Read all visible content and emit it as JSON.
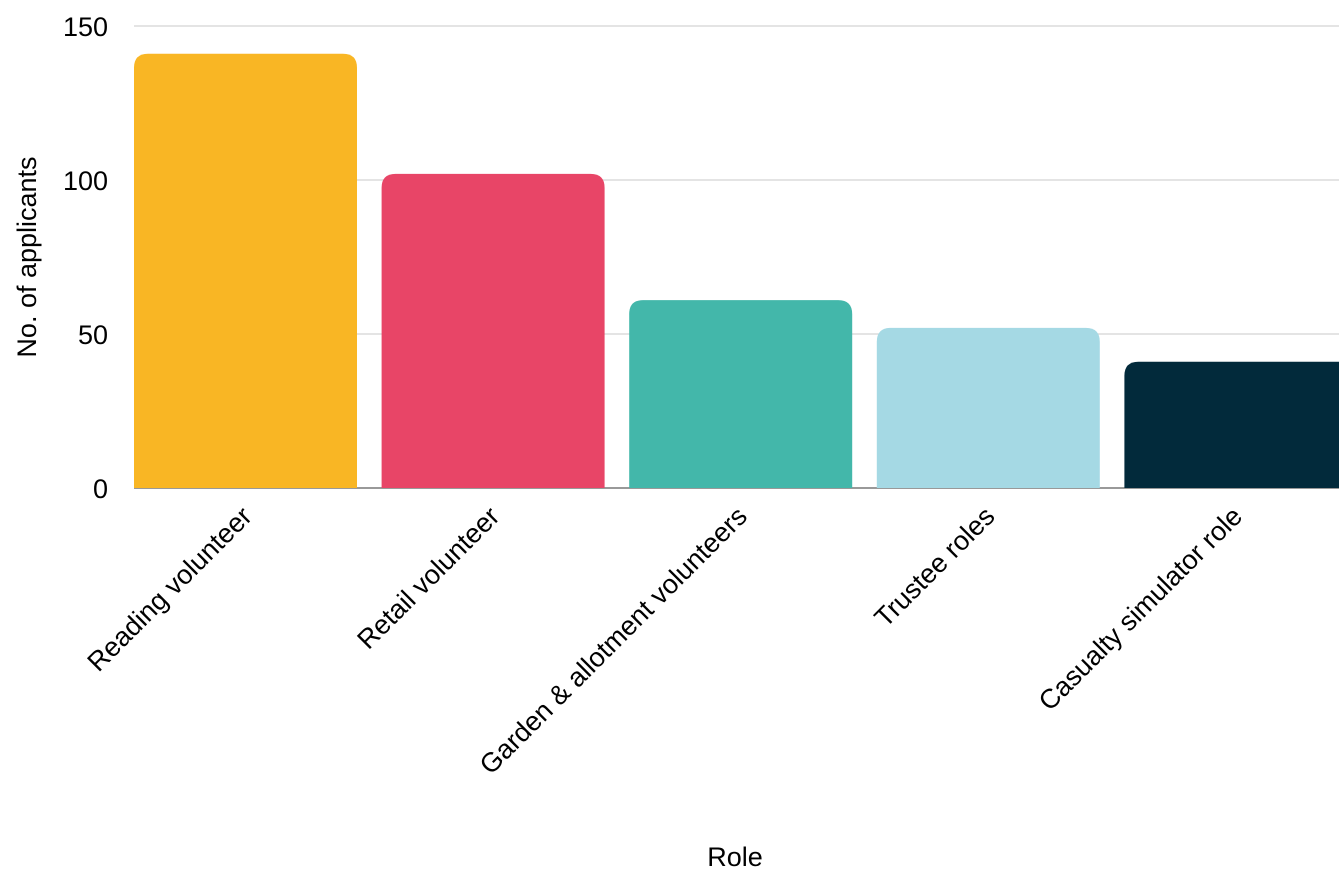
{
  "chart_data": {
    "type": "bar",
    "title": "",
    "xlabel": "Role",
    "ylabel": "No. of applicants",
    "ylim": [
      0,
      150
    ],
    "yticks": [
      0,
      50,
      100,
      150
    ],
    "grid": true,
    "categories": [
      "Reading volunteer",
      "Retail volunteer",
      "Garden & allotment volunteers",
      "Trustee roles",
      "Casualty simulator role"
    ],
    "values": [
      141,
      102,
      61,
      52,
      41
    ],
    "colors": [
      "#F9B624",
      "#E84567",
      "#43B7AA",
      "#A5D9E4",
      "#022A3B"
    ]
  }
}
